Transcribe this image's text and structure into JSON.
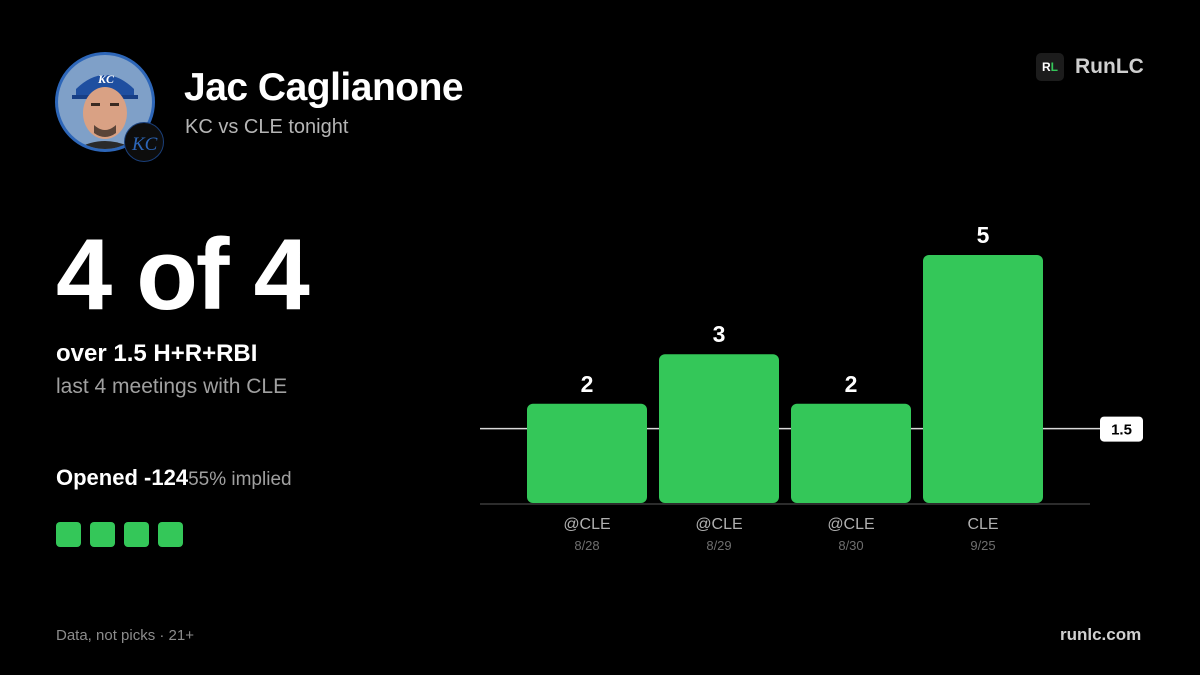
{
  "player": {
    "name": "Jac Caglianone",
    "matchup": "KC vs CLE tonight",
    "team_logo_text": "KC"
  },
  "brand": {
    "logo_r": "R",
    "logo_l": "L",
    "name": "RunLC",
    "url": "runlc.com"
  },
  "stat": {
    "headline": "4 of 4",
    "prop": "over 1.5 H+R+RBI",
    "context": "last 4 meetings with CLE",
    "opened_label": "Opened",
    "opened_odds": "-124",
    "implied": "55% implied",
    "hits_count": 4
  },
  "footer": {
    "disclaimer": "Data, not picks · 21+"
  },
  "colors": {
    "accent_green": "#34c759",
    "background": "#000000",
    "team_blue": "#2d66b8"
  },
  "chart_data": {
    "type": "bar",
    "categories": [
      "@CLE",
      "@CLE",
      "@CLE",
      "CLE"
    ],
    "dates": [
      "8/28",
      "8/29",
      "8/30",
      "9/25"
    ],
    "values": [
      2,
      3,
      2,
      5
    ],
    "line_value": 1.5,
    "line_label": "1.5",
    "ylim": [
      0,
      5
    ],
    "grid": false
  }
}
